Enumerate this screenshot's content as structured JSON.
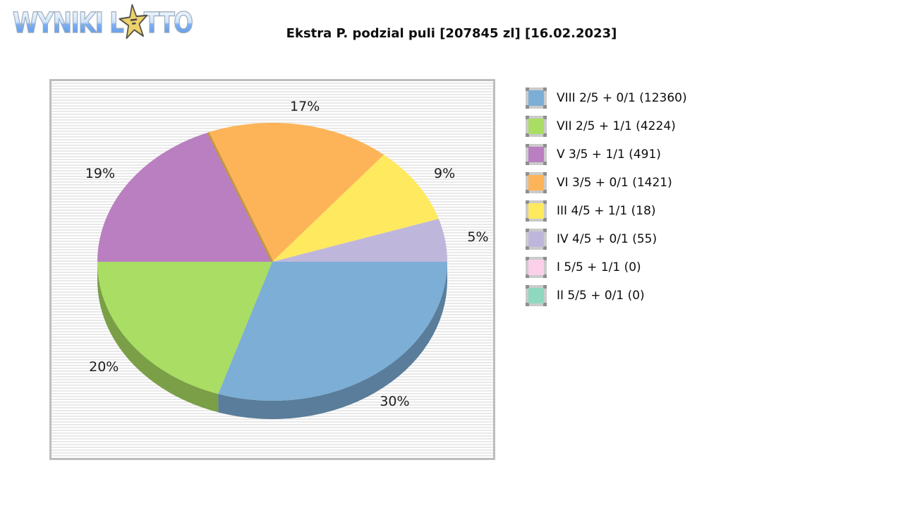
{
  "logo": {
    "word1": "WYNIKI ",
    "word2_pre": "L",
    "word2_post": "TTO",
    "star_color": "#ecd26a",
    "star_outline": "#55524a"
  },
  "chart_data": {
    "type": "pie",
    "title": "Ekstra P. podzial puli [207845 zl] [16.02.2023]",
    "pool": "207845 zl",
    "date": "16.02.2023",
    "unit": "%",
    "legend_position": "right",
    "style": "3d-pie",
    "slices": [
      {
        "id": "VIII",
        "label": "VIII 2/5 + 0/1 (12360)",
        "count": 12360,
        "percent": 30,
        "color": "#7caed6"
      },
      {
        "id": "VII",
        "label": "VII 2/5 + 1/1 (4224)",
        "count": 4224,
        "percent": 20,
        "color": "#a9dd63"
      },
      {
        "id": "V",
        "label": "V 3/5 + 1/1 (491)",
        "count": 491,
        "percent": 19,
        "color": "#b97fc0"
      },
      {
        "id": "VI",
        "label": "VI 3/5 + 0/1 (1421)",
        "count": 1421,
        "percent": 17,
        "color": "#fdb458"
      },
      {
        "id": "III",
        "label": "III 4/5 + 1/1 (18)",
        "count": 18,
        "percent": 9,
        "color": "#ffe95e"
      },
      {
        "id": "IV",
        "label": "IV 4/5 + 0/1 (55)",
        "count": 55,
        "percent": 5,
        "color": "#bfb7db"
      },
      {
        "id": "I",
        "label": "I 5/5 + 1/1 (0)",
        "count": 0,
        "percent": 0,
        "color": "#fbd0e8"
      },
      {
        "id": "II",
        "label": "II 5/5 + 0/1 (0)",
        "count": 0,
        "percent": 0,
        "color": "#8fd8c0"
      }
    ],
    "draw_order": [
      "IV",
      "III",
      "VI",
      "V",
      "VII",
      "VIII"
    ],
    "start_angle_deg": 0,
    "direction": "ccw",
    "label_color": "#1c1c1c",
    "divider_line": {
      "after": "VI",
      "color": "#c2964a"
    }
  }
}
